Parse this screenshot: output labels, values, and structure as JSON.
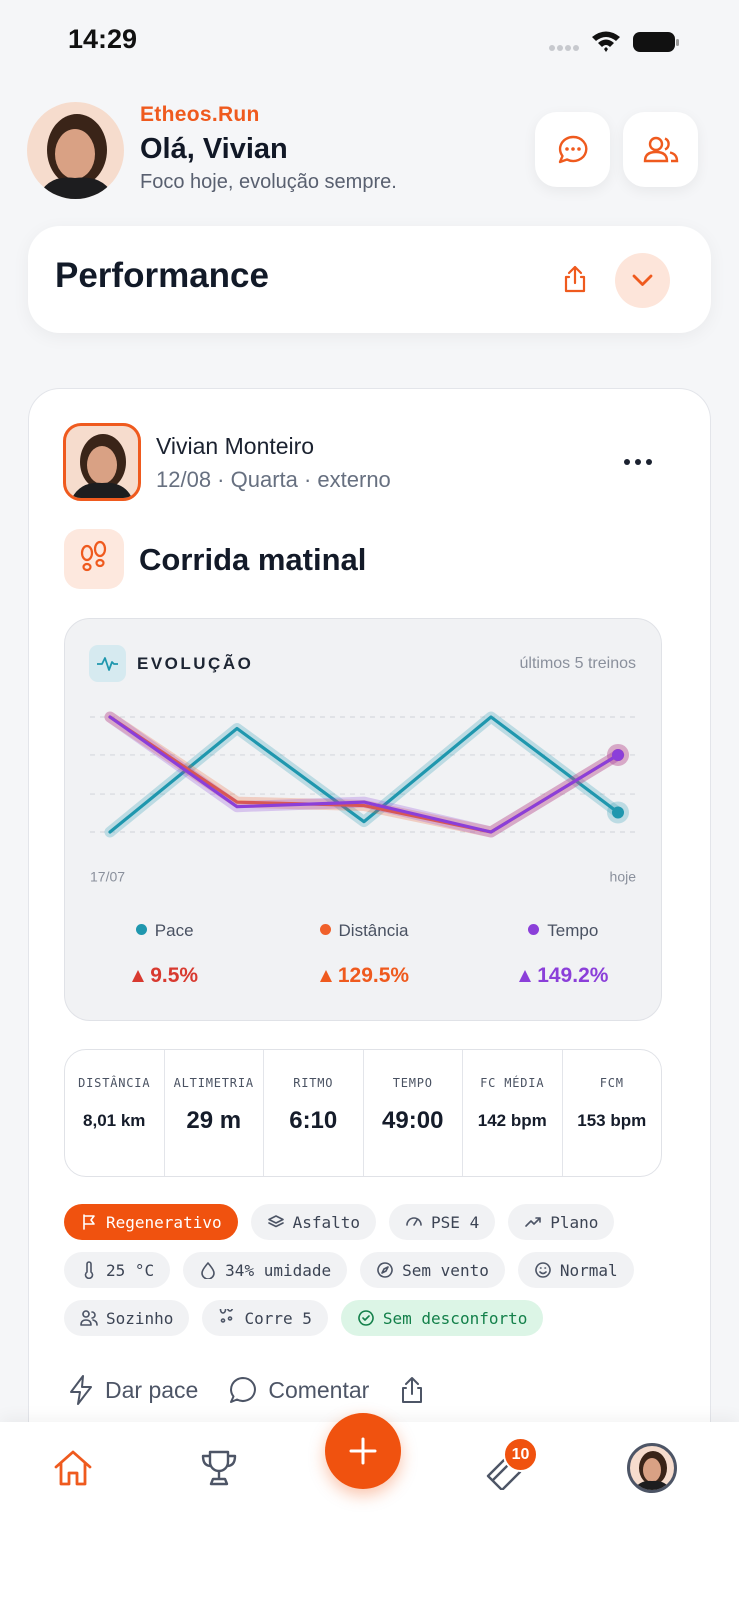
{
  "status_bar": {
    "time": "14:29"
  },
  "header": {
    "brand": "Etheos.Run",
    "greeting": "Olá, Vivian",
    "subtitle": "Foco hoje, evolução sempre."
  },
  "performance": {
    "title": "Performance"
  },
  "post": {
    "author": "Vivian Monteiro",
    "meta": "12/08 · Quarta · externo",
    "title": "Corrida matinal",
    "evolution": {
      "title": "EVOLUÇÃO",
      "range_label": "últimos 5 treinos",
      "x_start": "17/07",
      "x_end": "hoje",
      "chart_data": {
        "type": "line",
        "ylim": [
          0,
          100
        ],
        "yticks": [
          0,
          33,
          67,
          100
        ],
        "grid": true,
        "series": [
          {
            "name": "Pace",
            "color": "#1f97ae",
            "values": [
              0,
              90,
              9,
              100,
              17
            ],
            "change": "9.5%",
            "change_color": "#d83a30"
          },
          {
            "name": "Distância",
            "color": "#f0602a",
            "values": [
              100,
              26,
              23,
              0,
              67
            ],
            "change": "129.5%",
            "change_color": "#ef5a1e"
          },
          {
            "name": "Tempo",
            "color": "#8b3fd9",
            "values": [
              100,
              22,
              26,
              0,
              67
            ],
            "change": "149.2%",
            "change_color": "#8b3fd9"
          }
        ]
      }
    },
    "stats": [
      {
        "label": "DISTÂNCIA",
        "value": "8,01 km"
      },
      {
        "label": "ALTIMETRIA",
        "value": "29 m"
      },
      {
        "label": "RITMO",
        "value": "6:10"
      },
      {
        "label": "TEMPO",
        "value": "49:00"
      },
      {
        "label": "FC MÉDIA",
        "value": "142 bpm"
      },
      {
        "label": "FCM",
        "value": "153 bpm"
      }
    ],
    "tags": [
      [
        {
          "label": "Regenerativo",
          "variant": "primary"
        },
        {
          "label": "Asfalto"
        },
        {
          "label": "PSE 4"
        },
        {
          "label": "Plano"
        }
      ],
      [
        {
          "label": "25 °C"
        },
        {
          "label": "34% umidade"
        },
        {
          "label": "Sem vento"
        },
        {
          "label": "Normal"
        }
      ],
      [
        {
          "label": "Sozinho"
        },
        {
          "label": "Corre 5"
        },
        {
          "label": "Sem desconforto",
          "variant": "success"
        }
      ]
    ],
    "actions": {
      "pace": "Dar pace",
      "comment": "Comentar"
    }
  },
  "nav": {
    "badge": "10"
  }
}
